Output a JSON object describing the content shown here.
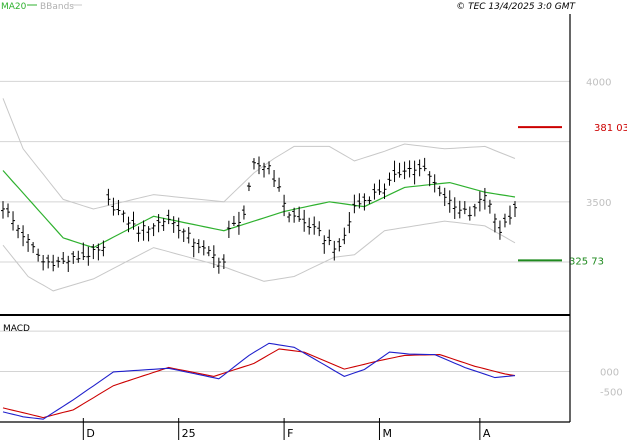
{
  "header": {
    "ma_label": "MA20",
    "bb_label": "BBands",
    "copyright": "© TEC 13/4/2025 3:0 GMT"
  },
  "colors": {
    "price": "#000000",
    "ma": "#2fb12f",
    "bbands": "#c8c8c8",
    "resistance": "#cc0000",
    "support": "#1f8a1f",
    "macd": "#2020cc",
    "signal": "#cc0000",
    "grid": "#d4d4d4",
    "axis_text": "#c0c0c0"
  },
  "chart_data": [
    {
      "type": "ohlc",
      "ylim": [
        3030,
        4280
      ],
      "y_ticks": [
        {
          "value": 3500,
          "label": "3500"
        },
        {
          "value": 4000,
          "label": "4000"
        }
      ],
      "x_ticks": [
        {
          "label": "D",
          "index": 16
        },
        {
          "label": "25",
          "index": 35
        },
        {
          "label": "F",
          "index": 56
        },
        {
          "label": "M",
          "index": 75
        },
        {
          "label": "A",
          "index": 95
        }
      ],
      "n_bars": 103,
      "price_key": [
        [
          0,
          3480
        ],
        [
          3,
          3390
        ],
        [
          8,
          3250
        ],
        [
          12,
          3250
        ],
        [
          20,
          3300
        ],
        [
          21,
          3500
        ],
        [
          27,
          3380
        ],
        [
          33,
          3430
        ],
        [
          40,
          3300
        ],
        [
          44,
          3250
        ],
        [
          45,
          3380
        ],
        [
          48,
          3450
        ],
        [
          50,
          3650
        ],
        [
          53,
          3650
        ],
        [
          57,
          3450
        ],
        [
          61,
          3400
        ],
        [
          67,
          3300
        ],
        [
          70,
          3480
        ],
        [
          76,
          3560
        ],
        [
          80,
          3640
        ],
        [
          84,
          3630
        ],
        [
          88,
          3520
        ],
        [
          93,
          3440
        ],
        [
          96,
          3530
        ],
        [
          99,
          3380
        ],
        [
          102,
          3480
        ]
      ],
      "ma_key": [
        [
          0,
          3630
        ],
        [
          12,
          3350
        ],
        [
          18,
          3310
        ],
        [
          30,
          3440
        ],
        [
          44,
          3380
        ],
        [
          56,
          3460
        ],
        [
          65,
          3500
        ],
        [
          72,
          3480
        ],
        [
          80,
          3560
        ],
        [
          89,
          3580
        ],
        [
          96,
          3540
        ],
        [
          102,
          3520
        ]
      ],
      "band_upper_key": [
        [
          0,
          3930
        ],
        [
          4,
          3720
        ],
        [
          12,
          3510
        ],
        [
          18,
          3470
        ],
        [
          30,
          3530
        ],
        [
          44,
          3500
        ],
        [
          50,
          3620
        ],
        [
          54,
          3680
        ],
        [
          58,
          3730
        ],
        [
          65,
          3730
        ],
        [
          70,
          3670
        ],
        [
          76,
          3710
        ],
        [
          80,
          3740
        ],
        [
          88,
          3720
        ],
        [
          96,
          3730
        ],
        [
          102,
          3680
        ]
      ],
      "band_lower_key": [
        [
          0,
          3320
        ],
        [
          5,
          3190
        ],
        [
          10,
          3130
        ],
        [
          18,
          3180
        ],
        [
          30,
          3310
        ],
        [
          44,
          3230
        ],
        [
          52,
          3170
        ],
        [
          58,
          3190
        ],
        [
          66,
          3270
        ],
        [
          70,
          3280
        ],
        [
          76,
          3380
        ],
        [
          82,
          3400
        ],
        [
          88,
          3420
        ],
        [
          96,
          3400
        ],
        [
          102,
          3330
        ]
      ],
      "levels": [
        {
          "name": "resistance",
          "value": 3810,
          "label": "381 03"
        },
        {
          "name": "support",
          "value": 3257,
          "label": "325 73"
        }
      ]
    },
    {
      "type": "line",
      "title": "MACD",
      "ylim": [
        -1250,
        1350
      ],
      "y_ticks": [
        {
          "value": 0,
          "label": "000"
        },
        {
          "value": -500,
          "label": "-500"
        }
      ],
      "macd_key": [
        [
          0,
          -1000
        ],
        [
          4,
          -1120
        ],
        [
          8,
          -1180
        ],
        [
          14,
          -700
        ],
        [
          22,
          -10
        ],
        [
          33,
          80
        ],
        [
          43,
          -180
        ],
        [
          49,
          400
        ],
        [
          53,
          700
        ],
        [
          58,
          600
        ],
        [
          68,
          -120
        ],
        [
          72,
          50
        ],
        [
          77,
          480
        ],
        [
          81,
          430
        ],
        [
          86,
          420
        ],
        [
          92,
          100
        ],
        [
          98,
          -150
        ],
        [
          102,
          -100
        ]
      ],
      "signal_key": [
        [
          0,
          -900
        ],
        [
          8,
          -1140
        ],
        [
          14,
          -950
        ],
        [
          22,
          -350
        ],
        [
          33,
          100
        ],
        [
          42,
          -120
        ],
        [
          50,
          200
        ],
        [
          55,
          560
        ],
        [
          60,
          480
        ],
        [
          68,
          60
        ],
        [
          75,
          270
        ],
        [
          80,
          400
        ],
        [
          87,
          420
        ],
        [
          94,
          130
        ],
        [
          100,
          -60
        ],
        [
          102,
          -100
        ]
      ]
    }
  ]
}
